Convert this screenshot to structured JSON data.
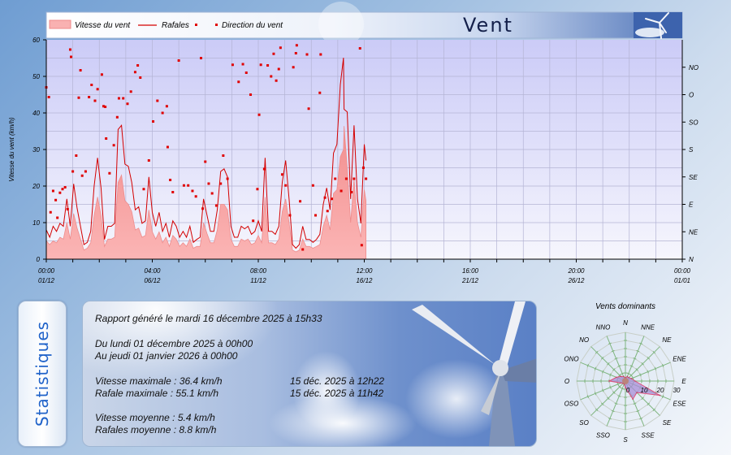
{
  "header": {
    "title": "Vent",
    "legend": {
      "speed": "Vitesse du vent",
      "gust": "Rafales",
      "direction": "Direction du vent"
    }
  },
  "colors": {
    "speed_fill": "#f7a3a3",
    "gust_line": "#d40000",
    "direction_dots": "#e00000",
    "title": "#14204a",
    "stats_heading": "#1f62c9"
  },
  "chart_data": [
    {
      "type": "line",
      "ylabel": "Vitesse du vent  (km/h)",
      "ylim": [
        0,
        60
      ],
      "yticks": [
        "0",
        "10",
        "20",
        "30",
        "40",
        "50",
        "60"
      ],
      "xlim": [
        "2025-12-01T00:00",
        "2026-01-01T00:00"
      ],
      "xticks": [
        {
          "time": "00:00",
          "date": "01/12"
        },
        {
          "time": "04:00",
          "date": "06/12"
        },
        {
          "time": "08:00",
          "date": "11/12"
        },
        {
          "time": "12:00",
          "date": "16/12"
        },
        {
          "time": "16:00",
          "date": "21/12"
        },
        {
          "time": "20:00",
          "date": "26/12"
        },
        {
          "time": "00:00",
          "date": "01/01"
        }
      ],
      "right_axis": {
        "labels": [
          "N",
          "NE",
          "E",
          "SE",
          "S",
          "SO",
          "O",
          "NO"
        ],
        "range_degrees": [
          0,
          360
        ]
      },
      "grid": true,
      "legend_position": "top",
      "series": [
        {
          "name": "Vitesse du vent",
          "kind": "area"
        },
        {
          "name": "Rafales",
          "kind": "line"
        },
        {
          "name": "Direction du vent",
          "kind": "scatter",
          "axis": "right"
        }
      ],
      "wind_columns": [
        "time",
        "gust_kmh",
        "speed_kmh"
      ],
      "wind": [
        [
          "2025-12-01T00:00",
          8,
          5
        ],
        [
          "2025-12-01T04:00",
          6,
          4
        ],
        [
          "2025-12-01T08:00",
          9,
          5
        ],
        [
          "2025-12-01T12:00",
          7.6,
          4.5
        ],
        [
          "2025-12-01T16:00",
          9.8,
          6
        ],
        [
          "2025-12-01T20:00",
          9,
          5.5
        ],
        [
          "2025-12-02T00:00",
          16.5,
          10
        ],
        [
          "2025-12-02T04:00",
          9,
          5.5
        ],
        [
          "2025-12-02T08:00",
          20.6,
          12.5
        ],
        [
          "2025-12-02T12:00",
          14,
          8.5
        ],
        [
          "2025-12-02T16:00",
          9,
          5.5
        ],
        [
          "2025-12-02T20:00",
          4,
          2.5
        ],
        [
          "2025-12-03T00:00",
          4.6,
          3
        ],
        [
          "2025-12-03T04:00",
          7.6,
          4.5
        ],
        [
          "2025-12-03T08:00",
          20,
          12
        ],
        [
          "2025-12-03T12:00",
          27.7,
          17
        ],
        [
          "2025-12-03T16:00",
          19.5,
          12
        ],
        [
          "2025-12-03T20:00",
          5.4,
          3.5
        ],
        [
          "2025-12-04T00:00",
          9,
          5.5
        ],
        [
          "2025-12-04T04:00",
          9,
          5.5
        ],
        [
          "2025-12-04T08:00",
          9.8,
          6
        ],
        [
          "2025-12-04T12:00",
          35.5,
          21
        ],
        [
          "2025-12-04T16:00",
          36.6,
          23
        ],
        [
          "2025-12-04T20:00",
          26,
          16
        ],
        [
          "2025-12-05T00:00",
          25.4,
          15
        ],
        [
          "2025-12-05T04:00",
          21,
          13
        ],
        [
          "2025-12-05T08:00",
          13.5,
          8
        ],
        [
          "2025-12-05T12:00",
          14.3,
          8.5
        ],
        [
          "2025-12-05T16:00",
          9.8,
          6
        ],
        [
          "2025-12-05T20:00",
          10.5,
          6.5
        ],
        [
          "2025-12-06T00:00",
          22.5,
          13.5
        ],
        [
          "2025-12-06T04:00",
          12.8,
          7.5
        ],
        [
          "2025-12-06T08:00",
          9,
          5.5
        ],
        [
          "2025-12-06T12:00",
          12.8,
          7.5
        ],
        [
          "2025-12-06T16:00",
          7.6,
          4.5
        ],
        [
          "2025-12-06T20:00",
          9.8,
          6
        ],
        [
          "2025-12-07T00:00",
          6,
          3.5
        ],
        [
          "2025-12-07T04:00",
          10.5,
          6.5
        ],
        [
          "2025-12-07T08:00",
          9,
          5.5
        ],
        [
          "2025-12-07T12:00",
          6,
          3.5
        ],
        [
          "2025-12-07T16:00",
          7.6,
          4.5
        ],
        [
          "2025-12-07T20:00",
          6,
          3.5
        ],
        [
          "2025-12-08T00:00",
          9,
          5.5
        ],
        [
          "2025-12-08T04:00",
          4.6,
          3
        ],
        [
          "2025-12-08T08:00",
          5.4,
          3.5
        ],
        [
          "2025-12-08T12:00",
          6,
          3.5
        ],
        [
          "2025-12-08T16:00",
          16.5,
          10
        ],
        [
          "2025-12-08T20:00",
          12,
          7
        ],
        [
          "2025-12-09T00:00",
          7.6,
          4.5
        ],
        [
          "2025-12-09T04:00",
          7.6,
          4.5
        ],
        [
          "2025-12-09T08:00",
          13.5,
          8
        ],
        [
          "2025-12-09T12:00",
          24,
          15
        ],
        [
          "2025-12-09T16:00",
          24.7,
          15
        ],
        [
          "2025-12-09T20:00",
          22.5,
          13.5
        ],
        [
          "2025-12-10T00:00",
          9,
          5.5
        ],
        [
          "2025-12-10T04:00",
          6,
          3.5
        ],
        [
          "2025-12-10T08:00",
          6,
          3.5
        ],
        [
          "2025-12-10T12:00",
          9,
          5.5
        ],
        [
          "2025-12-10T16:00",
          8.3,
          5
        ],
        [
          "2025-12-10T20:00",
          9,
          5.5
        ],
        [
          "2025-12-11T00:00",
          6.8,
          4
        ],
        [
          "2025-12-11T04:00",
          7.6,
          4.5
        ],
        [
          "2025-12-11T08:00",
          10.5,
          6.5
        ],
        [
          "2025-12-11T12:00",
          7.6,
          4.5
        ],
        [
          "2025-12-11T16:00",
          27.7,
          17
        ],
        [
          "2025-12-11T20:00",
          7.6,
          4.5
        ],
        [
          "2025-12-12T00:00",
          7.6,
          4.5
        ],
        [
          "2025-12-12T04:00",
          6.8,
          4
        ],
        [
          "2025-12-12T08:00",
          9,
          5.5
        ],
        [
          "2025-12-12T12:00",
          21,
          13
        ],
        [
          "2025-12-12T16:00",
          27,
          16.5
        ],
        [
          "2025-12-12T20:00",
          16.5,
          10
        ],
        [
          "2025-12-13T00:00",
          4,
          2.5
        ],
        [
          "2025-12-13T04:00",
          3,
          2
        ],
        [
          "2025-12-13T08:00",
          4,
          2.5
        ],
        [
          "2025-12-13T12:00",
          9,
          5.5
        ],
        [
          "2025-12-13T16:00",
          5.4,
          3.5
        ],
        [
          "2025-12-13T20:00",
          5.4,
          3.5
        ],
        [
          "2025-12-14T00:00",
          4.6,
          3
        ],
        [
          "2025-12-14T04:00",
          5.4,
          3.5
        ],
        [
          "2025-12-14T08:00",
          6.8,
          4
        ],
        [
          "2025-12-14T12:00",
          15,
          9
        ],
        [
          "2025-12-14T16:00",
          19.5,
          12
        ],
        [
          "2025-12-14T20:00",
          13.5,
          8
        ],
        [
          "2025-12-15T00:00",
          29,
          18
        ],
        [
          "2025-12-15T04:00",
          31.4,
          19
        ],
        [
          "2025-12-15T08:00",
          47.7,
          28
        ],
        [
          "2025-12-15T11:42",
          55.1,
          30
        ],
        [
          "2025-12-15T12:22",
          41,
          36.4
        ],
        [
          "2025-12-15T16:00",
          40.3,
          25
        ],
        [
          "2025-12-15T20:00",
          16.5,
          10
        ],
        [
          "2025-12-16T00:00",
          36.6,
          22
        ],
        [
          "2025-12-16T04:00",
          16.5,
          10
        ],
        [
          "2025-12-16T08:00",
          9.8,
          6
        ],
        [
          "2025-12-16T12:00",
          31.4,
          19
        ],
        [
          "2025-12-16T14:00",
          27,
          16
        ]
      ],
      "direction_columns": [
        "time",
        "degrees"
      ],
      "direction": [
        [
          "2025-12-01T00:00",
          282
        ],
        [
          "2025-12-01T03:00",
          266
        ],
        [
          "2025-12-01T05:00",
          77
        ],
        [
          "2025-12-01T08:00",
          112
        ],
        [
          "2025-12-01T11:00",
          97
        ],
        [
          "2025-12-01T13:00",
          68
        ],
        [
          "2025-12-01T16:00",
          109
        ],
        [
          "2025-12-01T19:00",
          115
        ],
        [
          "2025-12-01T22:00",
          118
        ],
        [
          "2025-12-02T01:00",
          82
        ],
        [
          "2025-12-02T04:00",
          344
        ],
        [
          "2025-12-02T05:00",
          332
        ],
        [
          "2025-12-02T07:00",
          144
        ],
        [
          "2025-12-02T11:00",
          170
        ],
        [
          "2025-12-02T14:00",
          265
        ],
        [
          "2025-12-02T16:00",
          310
        ],
        [
          "2025-12-02T18:00",
          137
        ],
        [
          "2025-12-02T22:00",
          144
        ],
        [
          "2025-12-03T02:00",
          266
        ],
        [
          "2025-12-03T05:00",
          286
        ],
        [
          "2025-12-03T09:00",
          260
        ],
        [
          "2025-12-03T12:00",
          279
        ],
        [
          "2025-12-03T17:00",
          303
        ],
        [
          "2025-12-03T19:00",
          251
        ],
        [
          "2025-12-03T21:00",
          250
        ],
        [
          "2025-12-03T22:00",
          198
        ],
        [
          "2025-12-04T02:00",
          141
        ],
        [
          "2025-12-04T07:00",
          187
        ],
        [
          "2025-12-04T11:00",
          233
        ],
        [
          "2025-12-04T13:00",
          264
        ],
        [
          "2025-12-04T18:00",
          264
        ],
        [
          "2025-12-04T23:00",
          255
        ],
        [
          "2025-12-05T03:00",
          275
        ],
        [
          "2025-12-05T08:00",
          307
        ],
        [
          "2025-12-05T11:00",
          318
        ],
        [
          "2025-12-05T14:00",
          298
        ],
        [
          "2025-12-05T18:00",
          115
        ],
        [
          "2025-12-06T00:00",
          162
        ],
        [
          "2025-12-06T05:00",
          226
        ],
        [
          "2025-12-06T10:00",
          260
        ],
        [
          "2025-12-06T16:00",
          240
        ],
        [
          "2025-12-06T21:00",
          251
        ],
        [
          "2025-12-06T22:00",
          184
        ],
        [
          "2025-12-07T01:00",
          130
        ],
        [
          "2025-12-07T04:00",
          110
        ],
        [
          "2025-12-07T11:00",
          326
        ],
        [
          "2025-12-07T17:00",
          121
        ],
        [
          "2025-12-07T22:00",
          121
        ],
        [
          "2025-12-08T03:00",
          112
        ],
        [
          "2025-12-08T07:00",
          103
        ],
        [
          "2025-12-08T13:00",
          330
        ],
        [
          "2025-12-08T15:00",
          83
        ],
        [
          "2025-12-08T18:00",
          160
        ],
        [
          "2025-12-08T22:00",
          124
        ],
        [
          "2025-12-09T02:00",
          108
        ],
        [
          "2025-12-09T07:00",
          88
        ],
        [
          "2025-12-09T12:00",
          124
        ],
        [
          "2025-12-09T15:00",
          170
        ],
        [
          "2025-12-09T20:00",
          132
        ],
        [
          "2025-12-10T02:00",
          319
        ],
        [
          "2025-12-10T09:00",
          291
        ],
        [
          "2025-12-10T14:00",
          320
        ],
        [
          "2025-12-10T18:00",
          306
        ],
        [
          "2025-12-10T23:00",
          270
        ],
        [
          "2025-12-11T02:00",
          63
        ],
        [
          "2025-12-11T07:00",
          115
        ],
        [
          "2025-12-11T09:00",
          237
        ],
        [
          "2025-12-11T11:00",
          319
        ],
        [
          "2025-12-11T15:00",
          148
        ],
        [
          "2025-12-11T19:00",
          318
        ],
        [
          "2025-12-11T23:00",
          300
        ],
        [
          "2025-12-12T02:00",
          337
        ],
        [
          "2025-12-12T05:00",
          293
        ],
        [
          "2025-12-12T08:00",
          312
        ],
        [
          "2025-12-12T10:00",
          347
        ],
        [
          "2025-12-12T12:00",
          139
        ],
        [
          "2025-12-12T16:00",
          121
        ],
        [
          "2025-12-12T21:00",
          72
        ],
        [
          "2025-12-13T01:00",
          315
        ],
        [
          "2025-12-13T04:00",
          338
        ],
        [
          "2025-12-13T05:00",
          351
        ],
        [
          "2025-12-13T09:00",
          95
        ],
        [
          "2025-12-13T12:00",
          16
        ],
        [
          "2025-12-13T17:00",
          336
        ],
        [
          "2025-12-13T19:00",
          247
        ],
        [
          "2025-12-14T00:00",
          121
        ],
        [
          "2025-12-14T03:00",
          72
        ],
        [
          "2025-12-14T08:00",
          273
        ],
        [
          "2025-12-14T09:00",
          336
        ],
        [
          "2025-12-14T14:00",
          101
        ],
        [
          "2025-12-14T17:00",
          79
        ],
        [
          "2025-12-14T22:00",
          99
        ],
        [
          "2025-12-15T02:00",
          132
        ],
        [
          "2025-12-15T09:00",
          112
        ],
        [
          "2025-12-15T15:00",
          132
        ],
        [
          "2025-12-15T21:00",
          110
        ],
        [
          "2025-12-16T00:00",
          132
        ],
        [
          "2025-12-16T07:00",
          346
        ],
        [
          "2025-12-16T09:00",
          23
        ],
        [
          "2025-12-16T11:00",
          150
        ],
        [
          "2025-12-16T14:00",
          132
        ]
      ]
    },
    {
      "type": "radar",
      "title": "Vents dominants",
      "categories": [
        "N",
        "NNE",
        "NE",
        "ENE",
        "E",
        "ESE",
        "SE",
        "SSE",
        "S",
        "SSO",
        "SO",
        "OSO",
        "O",
        "ONO",
        "NO",
        "NNO"
      ],
      "values": [
        2,
        3,
        3,
        4,
        6,
        23,
        10,
        12,
        4,
        2,
        2,
        3,
        10,
        6,
        4,
        3
      ],
      "radial_ticks": [
        "0",
        "10",
        "20",
        "30"
      ],
      "rlim": [
        0,
        30
      ]
    }
  ],
  "stats": {
    "heading": "Statistiques",
    "generated": "Rapport généré le mardi 16 décembre 2025 à 15h33",
    "from": "Du lundi 01 décembre 2025 à 00h00",
    "to": "Au jeudi 01 janvier 2026 à 00h00",
    "max_speed": "Vitesse maximale : 36.4 km/h",
    "max_speed_date": "15 déc. 2025 à 12h22",
    "max_gust": "Rafale maximale : 55.1 km/h",
    "max_gust_date": "15 déc. 2025 à 11h42",
    "avg_speed": "Vitesse moyenne : 5.4 km/h",
    "avg_gust": "Rafales moyenne : 8.8 km/h"
  }
}
